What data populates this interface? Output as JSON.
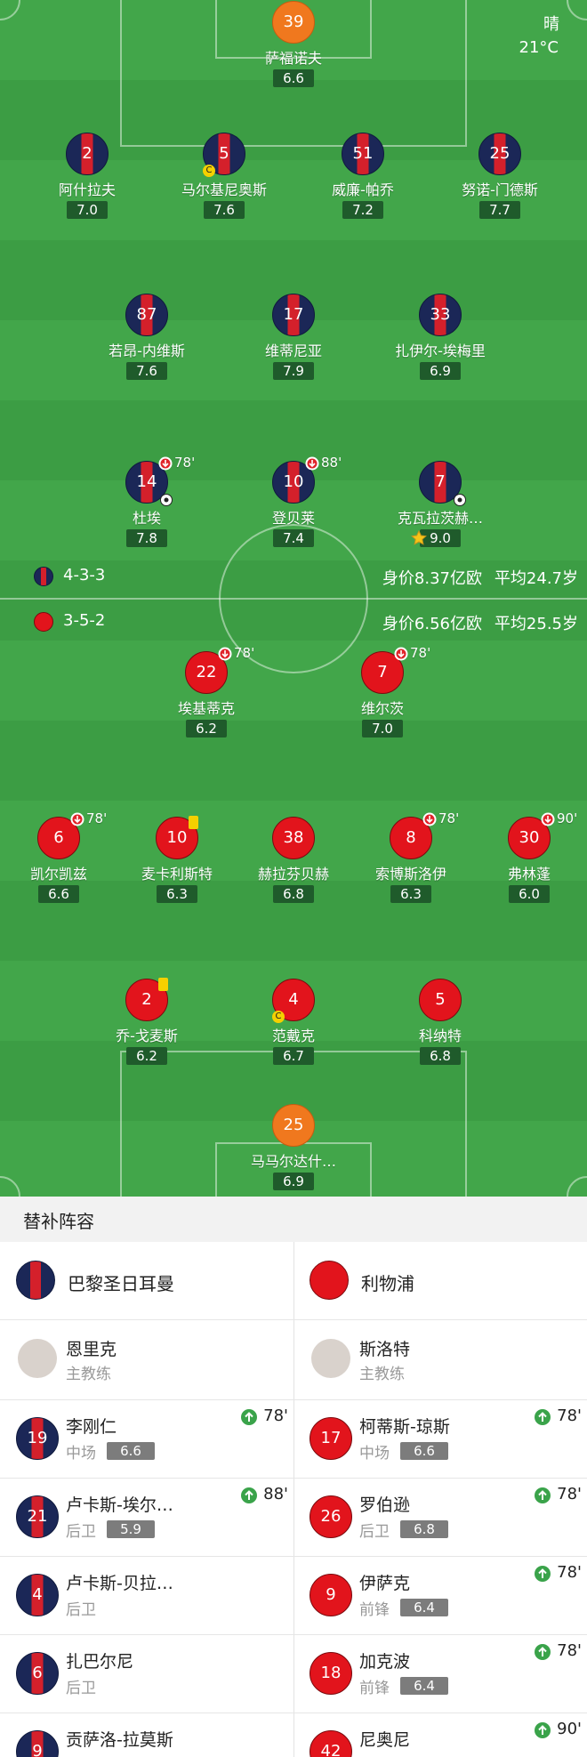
{
  "weather": {
    "condition": "晴",
    "temperature": "21°C"
  },
  "home": {
    "formation": "4-3-3",
    "market_value": "身价8.37亿欧",
    "average_age": "平均24.7岁",
    "players": [
      {
        "number": "39",
        "name": "萨福诺夫",
        "rating": "6.6"
      },
      {
        "number": "2",
        "name": "阿什拉夫",
        "rating": "7.0"
      },
      {
        "number": "5",
        "name": "马尔基尼奥斯",
        "rating": "7.6",
        "captain": "C"
      },
      {
        "number": "51",
        "name": "威廉-帕乔",
        "rating": "7.2"
      },
      {
        "number": "25",
        "name": "努诺-门德斯",
        "rating": "7.7"
      },
      {
        "number": "87",
        "name": "若昂-内维斯",
        "rating": "7.6"
      },
      {
        "number": "17",
        "name": "维蒂尼亚",
        "rating": "7.9"
      },
      {
        "number": "33",
        "name": "扎伊尔-埃梅里",
        "rating": "6.9"
      },
      {
        "number": "14",
        "name": "杜埃",
        "rating": "7.8",
        "subbed_off": "78'",
        "goal": true
      },
      {
        "number": "10",
        "name": "登贝莱",
        "rating": "7.4",
        "subbed_off": "88'"
      },
      {
        "number": "7",
        "name": "克瓦拉茨赫…",
        "rating": "9.0",
        "goal": true,
        "best": true
      }
    ]
  },
  "away": {
    "formation": "3-5-2",
    "market_value": "身价6.56亿欧",
    "average_age": "平均25.5岁",
    "players": [
      {
        "number": "22",
        "name": "埃基蒂克",
        "rating": "6.2",
        "subbed_off": "78'"
      },
      {
        "number": "7",
        "name": "维尔茨",
        "rating": "7.0",
        "subbed_off": "78'"
      },
      {
        "number": "6",
        "name": "凯尔凯兹",
        "rating": "6.6",
        "subbed_off": "78'"
      },
      {
        "number": "10",
        "name": "麦卡利斯特",
        "rating": "6.3",
        "yellow_card": true
      },
      {
        "number": "38",
        "name": "赫拉芬贝赫",
        "rating": "6.8"
      },
      {
        "number": "8",
        "name": "索博斯洛伊",
        "rating": "6.3",
        "subbed_off": "78'"
      },
      {
        "number": "30",
        "name": "弗林蓬",
        "rating": "6.0",
        "subbed_off": "90'"
      },
      {
        "number": "2",
        "name": "乔-戈麦斯",
        "rating": "6.2",
        "yellow_card": true
      },
      {
        "number": "4",
        "name": "范戴克",
        "rating": "6.7",
        "captain": "C"
      },
      {
        "number": "5",
        "name": "科纳特",
        "rating": "6.8"
      },
      {
        "number": "25",
        "name": "马马尔达什…",
        "rating": "6.9"
      }
    ]
  },
  "subs": {
    "title": "替补阵容",
    "teams": [
      {
        "team": "巴黎圣日耳曼",
        "coach": {
          "name": "恩里克",
          "role": "主教练"
        },
        "players": [
          {
            "number": "19",
            "name": "李刚仁",
            "position": "中场",
            "rating": "6.6",
            "subbed_on": "78'"
          },
          {
            "number": "21",
            "name": "卢卡斯-埃尔…",
            "position": "后卫",
            "rating": "5.9",
            "subbed_on": "88'"
          },
          {
            "number": "4",
            "name": "卢卡斯-贝拉…",
            "position": "后卫"
          },
          {
            "number": "6",
            "name": "扎巴尔尼",
            "position": "后卫"
          },
          {
            "number": "9",
            "name": "贡萨洛-拉莫斯"
          }
        ]
      },
      {
        "team": "利物浦",
        "coach": {
          "name": "斯洛特",
          "role": "主教练"
        },
        "players": [
          {
            "number": "17",
            "name": "柯蒂斯-琼斯",
            "position": "中场",
            "rating": "6.6",
            "subbed_on": "78'"
          },
          {
            "number": "26",
            "name": "罗伯逊",
            "position": "后卫",
            "rating": "6.8",
            "subbed_on": "78'"
          },
          {
            "number": "9",
            "name": "伊萨克",
            "position": "前锋",
            "rating": "6.4",
            "subbed_on": "78'"
          },
          {
            "number": "18",
            "name": "加克波",
            "position": "前锋",
            "rating": "6.4",
            "subbed_on": "78'"
          },
          {
            "number": "42",
            "name": "尼奥尼",
            "subbed_on": "90'"
          }
        ]
      }
    ]
  }
}
